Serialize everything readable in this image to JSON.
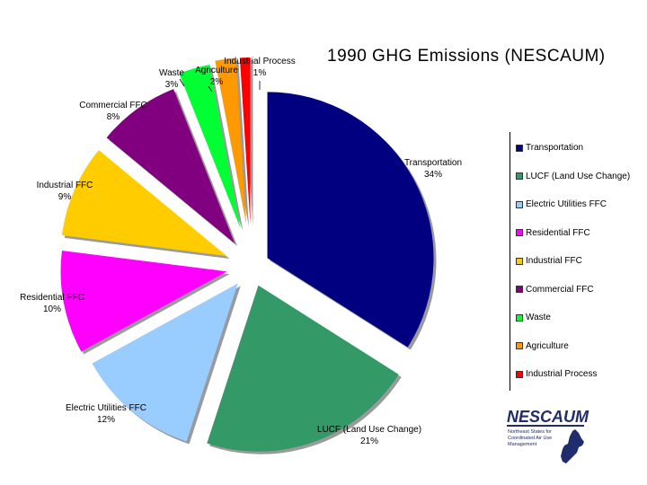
{
  "chart_data": {
    "type": "pie",
    "title": "1990 GHG Emissions (NESCAUM)",
    "slices": [
      {
        "label": "Transportation",
        "percent_label": "34%",
        "value": 34,
        "color": "#000080"
      },
      {
        "label": "LUCF (Land Use Change)",
        "percent_label": "21%",
        "value": 21,
        "color": "#339966"
      },
      {
        "label": "Electric Utilities FFC",
        "percent_label": "12%",
        "value": 12,
        "color": "#99ccff"
      },
      {
        "label": "Residential FFC",
        "percent_label": "10%",
        "value": 10,
        "color": "#ff00ff"
      },
      {
        "label": "Industrial FFC",
        "percent_label": "9%",
        "value": 9,
        "color": "#ffcc00"
      },
      {
        "label": "Commercial FFC",
        "percent_label": "8%",
        "value": 8,
        "color": "#800080"
      },
      {
        "label": "Waste",
        "percent_label": "3%",
        "value": 3,
        "color": "#00ff33"
      },
      {
        "label": "Agriculture",
        "percent_label": "2%",
        "value": 2,
        "color": "#ff9900"
      },
      {
        "label": "Industrial Process",
        "percent_label": "1%",
        "value": 1,
        "color": "#ff0000"
      }
    ],
    "legend": [
      "Transportation",
      "LUCF (Land Use Change)",
      "Electric Utilities FFC",
      "Residential FFC",
      "Industrial FFC",
      "Commercial FFC",
      "Waste",
      "Agriculture",
      "Industrial Process"
    ],
    "legend_position": "right",
    "exploded": true
  },
  "logo": {
    "wordmark": "NESCAUM",
    "tagline_lines": [
      "Northeast States for",
      "Coordinated Air Use",
      "Management"
    ],
    "color": "#1f2c6e"
  }
}
